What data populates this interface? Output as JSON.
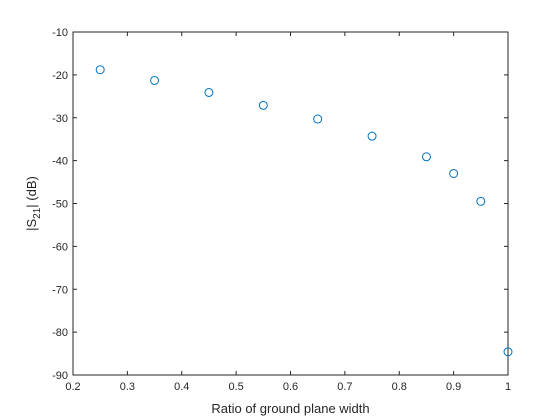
{
  "chart_data": {
    "type": "scatter",
    "xlabel": "Ratio of ground plane width",
    "ylabel": {
      "prefix": "|S",
      "subscript": "21",
      "suffix": "| (dB)"
    },
    "xlim": [
      0.2,
      1.0
    ],
    "ylim": [
      -90,
      -10
    ],
    "xticks": [
      0.2,
      0.3,
      0.4,
      0.5,
      0.6,
      0.7,
      0.8,
      0.9,
      1.0
    ],
    "xtick_labels": [
      "0.2",
      "0.3",
      "0.4",
      "0.5",
      "0.6",
      "0.7",
      "0.8",
      "0.9",
      "1"
    ],
    "yticks": [
      -10,
      -20,
      -30,
      -40,
      -50,
      -60,
      -70,
      -80,
      -90
    ],
    "ytick_labels": [
      "-10",
      "-20",
      "-30",
      "-40",
      "-50",
      "-60",
      "-70",
      "-80",
      "-90"
    ],
    "grid": false,
    "marker": "open-circle",
    "marker_color": "#0072BD",
    "series": [
      {
        "x": [
          0.25,
          0.35,
          0.45,
          0.55,
          0.65,
          0.75,
          0.85,
          0.9,
          0.95,
          1.0
        ],
        "y": [
          -18.8,
          -21.3,
          -24.1,
          -27.1,
          -30.3,
          -34.3,
          -39.1,
          -43.0,
          -49.5,
          -84.6
        ]
      }
    ]
  }
}
